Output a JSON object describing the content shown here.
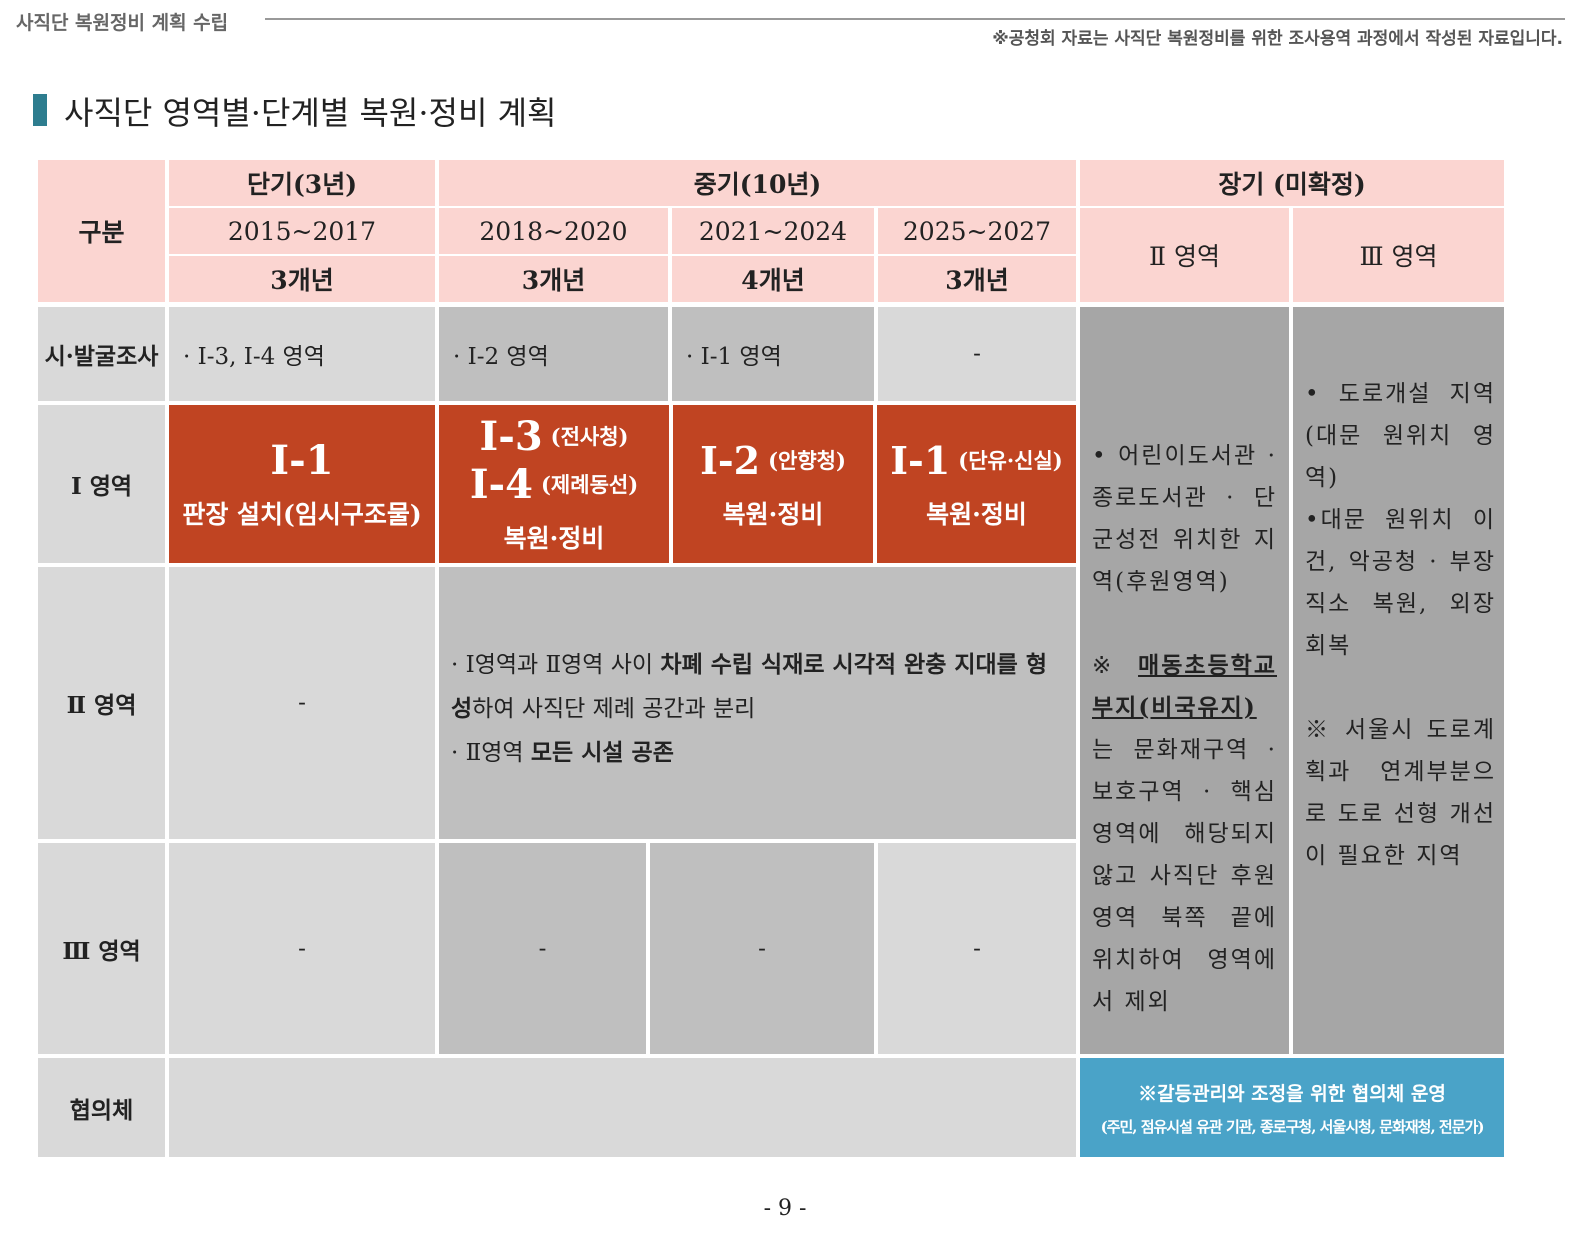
{
  "header": {
    "section": "사직단 복원정비 계획 수립",
    "note": "※공청회 자료는 사직단 복원정비를 위한 조사용역 과정에서 작성된 자료입니다."
  },
  "title": "사직단 영역별·단계별 복원·정비 계획",
  "table": {
    "head": {
      "category": "구분",
      "short": "단기(3년)",
      "mid": "중기(10년)",
      "long": "장기 (미확정)",
      "periods": [
        "2015~2017",
        "2018~2020",
        "2021~2024",
        "2025~2027"
      ],
      "durations": [
        "3개년",
        "3개년",
        "4개년",
        "3개년"
      ],
      "long_areas": [
        "Ⅱ 영역",
        "Ⅲ 영역"
      ]
    },
    "survey": {
      "label": "시·발굴조사",
      "cells": [
        "· Ⅰ-3,  Ⅰ-4 영역",
        "· Ⅰ-2 영역",
        "· Ⅰ-1 영역",
        "-"
      ]
    },
    "area1": {
      "label": "Ⅰ 영역",
      "cells": [
        {
          "items": [
            {
              "code": "Ⅰ-1"
            }
          ],
          "desc": "판장 설치(임시구조물)"
        },
        {
          "items": [
            {
              "code": "Ⅰ-3",
              "note": "(전사청)"
            },
            {
              "code": "Ⅰ-4",
              "note": "(제례동선)"
            }
          ],
          "desc": "복원·정비"
        },
        {
          "items": [
            {
              "code": "Ⅰ-2",
              "note": "(안향청)"
            }
          ],
          "desc": "복원·정비"
        },
        {
          "items": [
            {
              "code": "Ⅰ-1",
              "note": "(단유·신실)"
            }
          ],
          "desc": "복원·정비"
        }
      ]
    },
    "area2": {
      "label": "Ⅱ 영역",
      "short": "-",
      "mid": [
        [
          {
            "text": "· Ⅰ영역과 Ⅱ영역 사이 "
          },
          {
            "text": "차폐 수립 식재로 시각적 완충 지대를 형성",
            "bold": true
          },
          {
            "text": "하여 사직단 제례 공간과 분리"
          }
        ],
        [
          {
            "text": "· Ⅱ영역 "
          },
          {
            "text": "모든 시설 공존",
            "bold": true
          }
        ]
      ]
    },
    "area3": {
      "label": "Ⅲ 영역",
      "cells": [
        "-",
        "-",
        "-",
        "-"
      ]
    },
    "long": {
      "area2": [
        [
          {
            "text": "• 어린이도서관 · 종로도서관 · 단군성전 위치한 지역(후원영역)"
          }
        ],
        [
          {
            "text": "※ "
          },
          {
            "text": "매동초등학교 부지(비국유지)",
            "bold": true,
            "underline": true
          },
          {
            "text": "는 문화재구역 · 보호구역 · 핵심영역에 해당되지 않고 사직단 후원영역 북쪽 끝에 위치하여 영역에서 제외"
          }
        ]
      ],
      "area3": [
        [
          {
            "text": "• 도로개설 지역(대문 원위치 영역)"
          }
        ],
        [
          {
            "text": "•대문 원위치 이건, 악공청 · 부장직소 복원, 외장 회복"
          }
        ],
        [
          {
            "text": "※ 서울시 도로계획과 연계부분으로 도로 선형 개선이 필요한 지역"
          }
        ]
      ]
    },
    "council": {
      "label": "협의체",
      "text": "※갈등관리와 조정을 위한 협의체 운영",
      "sub": "(주민, 점유시설 유관 기관, 종로구청, 서울시청, 문화재청, 전문가)"
    }
  },
  "footer": {
    "page": "- 9 -"
  }
}
